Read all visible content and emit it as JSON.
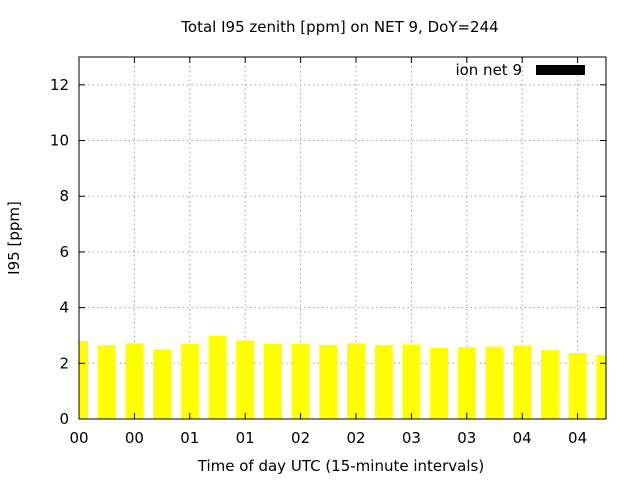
{
  "chart_data": {
    "type": "bar",
    "title": "Total I95 zenith [ppm] on NET 9, DoY=244",
    "xlabel": "Time of day UTC (15-minute intervals)",
    "ylabel": "I95 [ppm]",
    "ylim": [
      0,
      13
    ],
    "yticks": [
      0,
      2,
      4,
      6,
      8,
      10,
      12
    ],
    "xtick_labels": [
      "00",
      "00",
      "01",
      "01",
      "02",
      "02",
      "03",
      "03",
      "04",
      "04"
    ],
    "grid": true,
    "legend_position": "top-right",
    "bar_color": "#ffff00",
    "series": [
      {
        "name": "ion net 9",
        "legend_color": "#000000",
        "values": [
          2.8,
          2.65,
          2.72,
          2.5,
          2.7,
          2.98,
          2.82,
          2.7,
          2.7,
          2.66,
          2.72,
          2.66,
          2.68,
          2.55,
          2.58,
          2.6,
          2.64,
          2.47,
          2.37,
          2.3
        ]
      }
    ]
  }
}
